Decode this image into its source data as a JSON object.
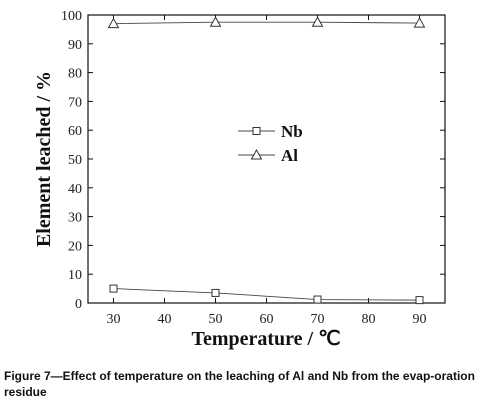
{
  "caption": "Figure 7—Effect of temperature on the leaching of Al and Nb from the evap-oration residue",
  "chart_data": {
    "type": "line",
    "x": [
      30,
      50,
      70,
      90
    ],
    "series": [
      {
        "name": "Nb",
        "values": [
          5.0,
          3.5,
          1.2,
          1.0
        ],
        "marker": "square"
      },
      {
        "name": "Al",
        "values": [
          97.0,
          97.5,
          97.5,
          97.2
        ],
        "marker": "triangle"
      }
    ],
    "xlabel": "Temperature / ℃",
    "ylabel": "Element leached / %",
    "xlim": [
      25,
      95
    ],
    "ylim": [
      0,
      100
    ],
    "xticks": [
      30,
      40,
      50,
      60,
      70,
      80,
      90
    ],
    "yticks": [
      0,
      10,
      20,
      30,
      40,
      50,
      60,
      70,
      80,
      90,
      100
    ],
    "grid": false,
    "legend_position": "center-left"
  }
}
